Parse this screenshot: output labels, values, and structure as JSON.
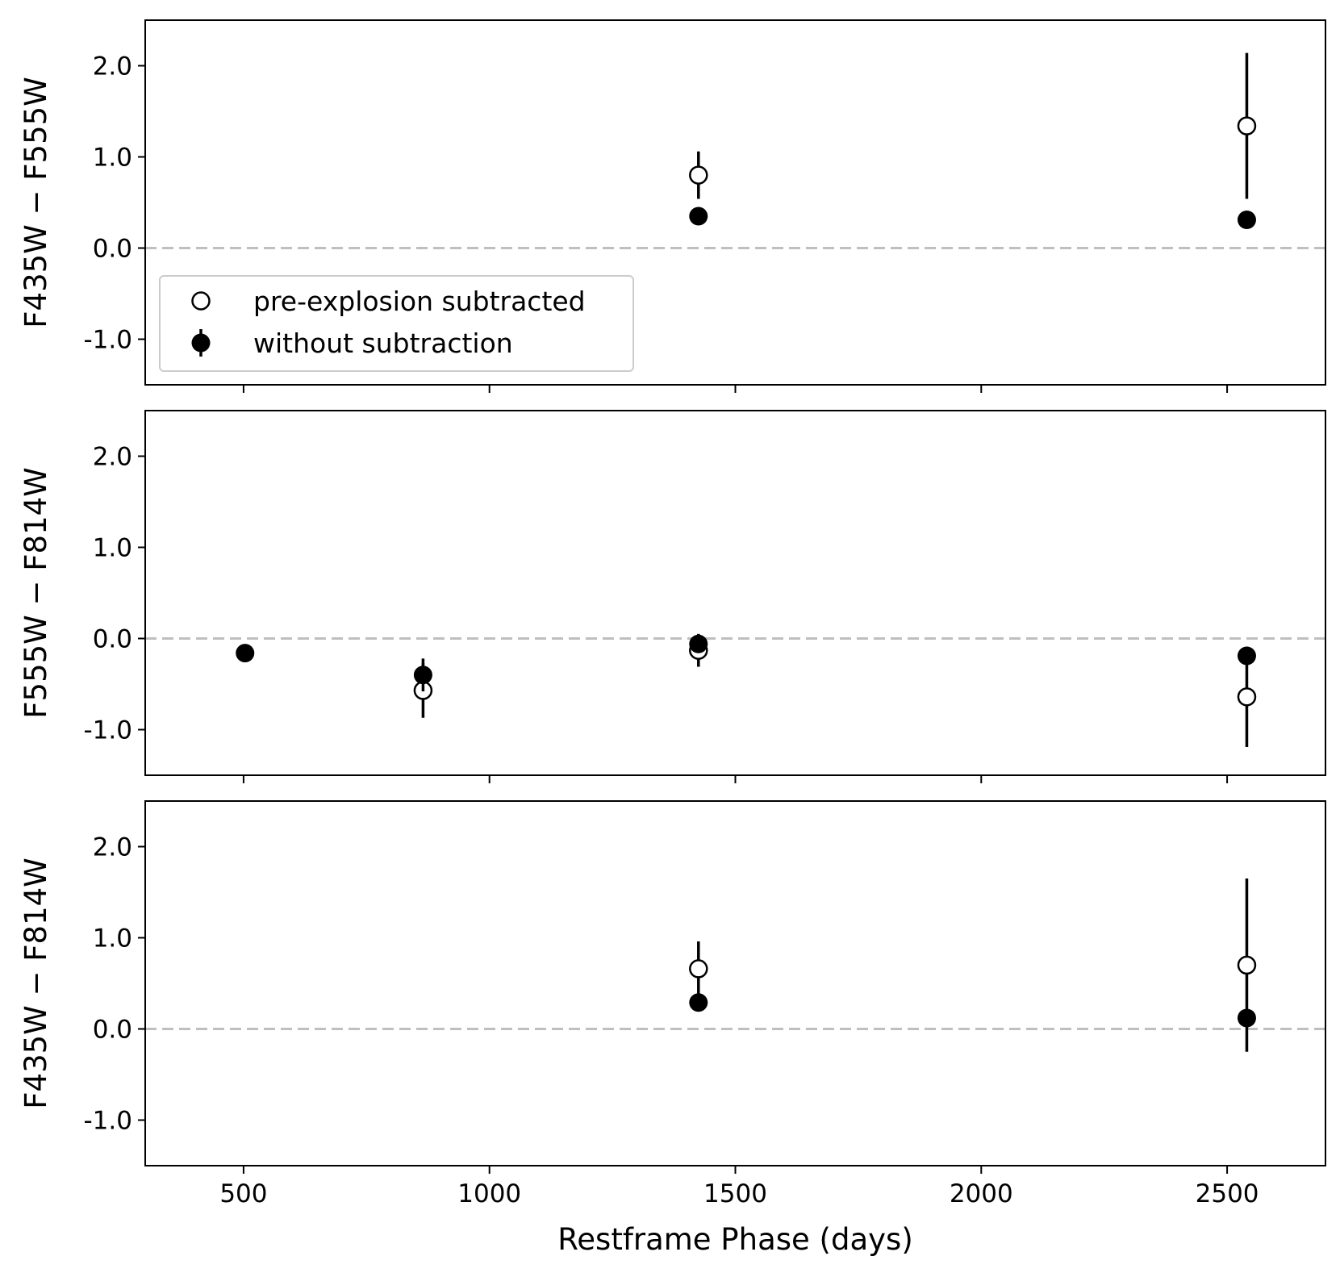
{
  "chart_data": {
    "type": "scatter",
    "xlabel": "Restframe Phase (days)",
    "xlim": [
      300,
      2700
    ],
    "x_ticks": [
      500,
      1000,
      1500,
      2000,
      2500
    ],
    "x_tick_labels": [
      "500",
      "1000",
      "1500",
      "2000",
      "2500"
    ],
    "legend": {
      "location": "lower-left",
      "entries": [
        {
          "label": "pre-explosion subtracted",
          "marker": "open-circle"
        },
        {
          "label": "without subtraction",
          "marker": "filled-circle"
        }
      ]
    },
    "reference_line": {
      "y": 0.0,
      "style": "dashed",
      "color": "#bfbfbf"
    },
    "panels": [
      {
        "ylabel": "F435W − F555W",
        "ylim": [
          -1.5,
          2.5
        ],
        "y_ticks": [
          -1.0,
          0.0,
          1.0,
          2.0
        ],
        "y_tick_labels": [
          "-1.0",
          "0.0",
          "1.0",
          "2.0"
        ],
        "show_legend": true,
        "series": [
          {
            "name": "pre-explosion subtracted",
            "marker": "open",
            "points": [
              {
                "x": 1425,
                "y": 0.8,
                "yerr": 0.26
              },
              {
                "x": 2540,
                "y": 1.34,
                "yerr": 0.8
              }
            ]
          },
          {
            "name": "without subtraction",
            "marker": "filled",
            "points": [
              {
                "x": 1425,
                "y": 0.35,
                "yerr": 0.02
              },
              {
                "x": 2540,
                "y": 0.31,
                "yerr": 0.02
              }
            ]
          }
        ]
      },
      {
        "ylabel": "F555W − F814W",
        "ylim": [
          -1.5,
          2.5
        ],
        "y_ticks": [
          -1.0,
          0.0,
          1.0,
          2.0
        ],
        "y_tick_labels": [
          "-1.0",
          "0.0",
          "1.0",
          "2.0"
        ],
        "show_legend": false,
        "series": [
          {
            "name": "pre-explosion subtracted",
            "marker": "open",
            "points": [
              {
                "x": 865,
                "y": -0.57,
                "yerr": 0.3
              },
              {
                "x": 1425,
                "y": -0.13,
                "yerr": 0.18
              },
              {
                "x": 2540,
                "y": -0.64,
                "yerr": 0.55
              }
            ]
          },
          {
            "name": "without subtraction",
            "marker": "filled",
            "points": [
              {
                "x": 503,
                "y": -0.16,
                "yerr": 0.03
              },
              {
                "x": 865,
                "y": -0.4,
                "yerr": 0.18
              },
              {
                "x": 1425,
                "y": -0.06,
                "yerr": 0.02
              },
              {
                "x": 2540,
                "y": -0.19,
                "yerr": 0.02
              }
            ]
          }
        ]
      },
      {
        "ylabel": "F435W − F814W",
        "ylim": [
          -1.5,
          2.5
        ],
        "y_ticks": [
          -1.0,
          0.0,
          1.0,
          2.0
        ],
        "y_tick_labels": [
          "-1.0",
          "0.0",
          "1.0",
          "2.0"
        ],
        "show_legend": false,
        "series": [
          {
            "name": "pre-explosion subtracted",
            "marker": "open",
            "points": [
              {
                "x": 1425,
                "y": 0.66,
                "yerr": 0.3
              },
              {
                "x": 2540,
                "y": 0.7,
                "yerr": 0.95
              }
            ]
          },
          {
            "name": "without subtraction",
            "marker": "filled",
            "points": [
              {
                "x": 1425,
                "y": 0.29,
                "yerr": 0.02
              },
              {
                "x": 2540,
                "y": 0.12,
                "yerr": 0.02
              }
            ]
          }
        ]
      }
    ]
  }
}
